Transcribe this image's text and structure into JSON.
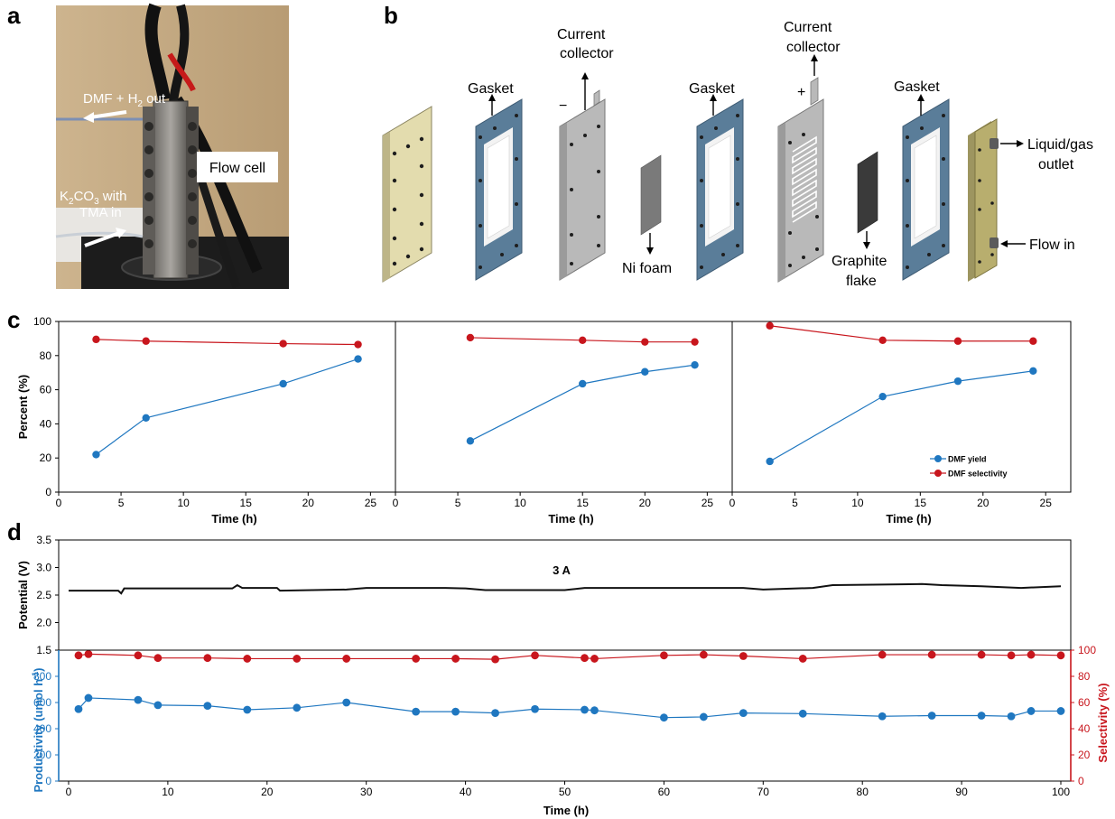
{
  "panels": {
    "a": "a",
    "b": "b",
    "c": "c",
    "d": "d"
  },
  "photo": {
    "label_outlet_prefix": "DMF + H",
    "label_outlet_sub": "2",
    "label_outlet_suffix": " out",
    "label_flowcell": "Flow cell",
    "label_inlet_prefix": "K",
    "label_inlet_sub1": "2",
    "label_inlet_mid": "CO",
    "label_inlet_sub2": "3",
    "label_inlet_suffix": " with",
    "label_inlet_line2": "TMA in"
  },
  "diagram": {
    "gasket1": "Gasket",
    "current_collector_1": "Current\ncollector",
    "current_collector_1_line1": "Current",
    "current_collector_1_line2": "collector",
    "minus": "−",
    "ni_foam": "Ni foam",
    "gasket2": "Gasket",
    "current_collector_2_line1": "Current",
    "current_collector_2_line2": "collector",
    "plus": "+",
    "graphite_line1": "Graphite",
    "graphite_line2": "flake",
    "gasket3": "Gasket",
    "outlet_line1": "Liquid/gas",
    "outlet_line2": "outlet",
    "flow_in": "Flow in"
  },
  "colors": {
    "yield": "#1f77c0",
    "selectivity": "#c8161d",
    "gasket": "#5a7d99",
    "endplate": "#e3dcae",
    "collector": "#b9b9b9",
    "foam": "#7a7a7a",
    "graphite": "#3a3a3a"
  },
  "chart_data": [
    {
      "type": "line",
      "xlabel": "Time (h)",
      "ylabel": "Percent (%)",
      "xlim": [
        0,
        27
      ],
      "ylim": [
        0,
        100
      ],
      "xticks": [
        0,
        5,
        10,
        15,
        20,
        25
      ],
      "yticks": [
        0,
        20,
        40,
        60,
        80,
        100
      ],
      "series": [
        {
          "name": "DMF yield",
          "x": [
            3,
            7,
            18,
            24
          ],
          "y": [
            22,
            43.5,
            63.5,
            78
          ]
        },
        {
          "name": "DMF selectivity",
          "x": [
            3,
            7,
            18,
            24
          ],
          "y": [
            89.5,
            88.5,
            87,
            86.5
          ]
        }
      ]
    },
    {
      "type": "line",
      "xlabel": "Time (h)",
      "xlim": [
        0,
        27
      ],
      "ylim": [
        0,
        100
      ],
      "xticks": [
        0,
        5,
        10,
        15,
        20,
        25
      ],
      "series": [
        {
          "name": "DMF yield",
          "x": [
            6,
            15,
            20,
            24
          ],
          "y": [
            30,
            63.5,
            70.5,
            74.5
          ]
        },
        {
          "name": "DMF selectivity",
          "x": [
            6,
            15,
            20,
            24
          ],
          "y": [
            90.5,
            89,
            88,
            88
          ]
        }
      ]
    },
    {
      "type": "line",
      "xlabel": "Time (h)",
      "xlim": [
        0,
        27
      ],
      "ylim": [
        0,
        100
      ],
      "xticks": [
        0,
        5,
        10,
        15,
        20,
        25
      ],
      "legend": {
        "position": "bottom-right",
        "entries": [
          "DMF yield",
          "DMF selectivity"
        ]
      },
      "series": [
        {
          "name": "DMF yield",
          "x": [
            3,
            12,
            18,
            24
          ],
          "y": [
            18,
            56,
            65,
            71
          ]
        },
        {
          "name": "DMF selectivity",
          "x": [
            3,
            12,
            18,
            24
          ],
          "y": [
            97.5,
            89,
            88.5,
            88.5
          ]
        }
      ]
    },
    {
      "type": "line",
      "ylabel": "Potential (V)",
      "xlim": [
        -1,
        101
      ],
      "ylim": [
        1.5,
        3.5
      ],
      "yticks": [
        1.5,
        2.0,
        2.5,
        3.0,
        3.5
      ],
      "ytick_labels": [
        "1.5",
        "2.0",
        "2.5",
        "3.0",
        "3.5"
      ],
      "annotation": "3 A",
      "series": [
        {
          "x": [
            0,
            5,
            5.3,
            5.6,
            10,
            16.5,
            17,
            17.5,
            20,
            21,
            21.3,
            28,
            30,
            38,
            40,
            42,
            50,
            52,
            60,
            68,
            70,
            75,
            77,
            82,
            86,
            88,
            92,
            96,
            100
          ],
          "y": [
            2.58,
            2.58,
            2.53,
            2.62,
            2.62,
            2.62,
            2.68,
            2.63,
            2.63,
            2.63,
            2.58,
            2.6,
            2.63,
            2.63,
            2.62,
            2.59,
            2.59,
            2.63,
            2.63,
            2.63,
            2.6,
            2.63,
            2.68,
            2.69,
            2.7,
            2.68,
            2.66,
            2.63,
            2.66
          ]
        }
      ]
    },
    {
      "type": "scatter",
      "xlabel": "Time (h)",
      "ylabel": "Productivity (µmol h⁻¹)",
      "ylabel_text": "Productivity (umol h",
      "ylabel_sup": "-1",
      "ylabel_close": ")",
      "y2label": "Selectivity (%)",
      "xlim": [
        -1,
        101
      ],
      "ylim": [
        0,
        1000
      ],
      "y2lim": [
        0,
        100
      ],
      "xticks": [
        0,
        10,
        20,
        30,
        40,
        50,
        60,
        70,
        80,
        90,
        100
      ],
      "yticks": [
        0,
        200,
        400,
        600,
        800
      ],
      "y2ticks": [
        0,
        20,
        40,
        60,
        80,
        100
      ],
      "series": [
        {
          "name": "Productivity",
          "axis": "left",
          "x": [
            1,
            2,
            7,
            9,
            14,
            18,
            23,
            28,
            35,
            39,
            43,
            47,
            52,
            53,
            60,
            64,
            68,
            74,
            82,
            87,
            92,
            95,
            97,
            100
          ],
          "y": [
            550,
            635,
            620,
            580,
            575,
            545,
            560,
            600,
            530,
            530,
            520,
            550,
            545,
            540,
            485,
            490,
            520,
            515,
            495,
            500,
            500,
            495,
            535,
            535
          ]
        },
        {
          "name": "Selectivity",
          "axis": "right",
          "x": [
            1,
            2,
            7,
            9,
            14,
            18,
            23,
            28,
            35,
            39,
            43,
            47,
            52,
            53,
            60,
            64,
            68,
            74,
            82,
            87,
            92,
            95,
            97,
            100
          ],
          "y": [
            96,
            97,
            96,
            94,
            94,
            93.5,
            93.5,
            93.5,
            93.5,
            93.5,
            93,
            96,
            94,
            93.5,
            96,
            96.5,
            95.5,
            93.5,
            96.5,
            96.5,
            96.5,
            96,
            96.5,
            96
          ]
        }
      ]
    }
  ]
}
